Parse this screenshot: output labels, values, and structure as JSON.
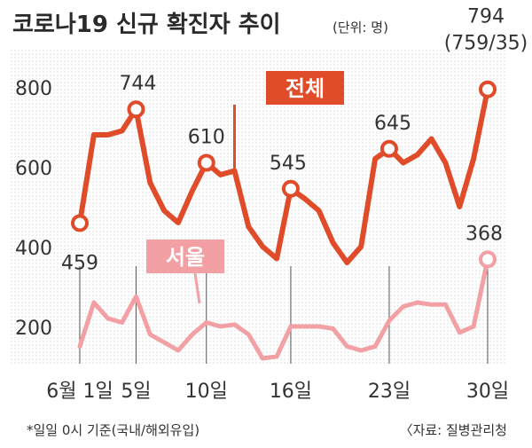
{
  "chart_data": {
    "type": "line",
    "title": "코로나19 신규 확진자 추이",
    "unit_note": "(단위: 명)",
    "footnote": "*일일 0시 기준(국내/해외유입)",
    "source": "〈자료: 질병관리청",
    "x_tick_labels": [
      {
        "x": 1,
        "label": "6월 1일"
      },
      {
        "x": 5,
        "label": "5일"
      },
      {
        "x": 10,
        "label": "10일"
      },
      {
        "x": 16,
        "label": "16일"
      },
      {
        "x": 23,
        "label": "23일"
      },
      {
        "x": 30,
        "label": "30일"
      }
    ],
    "xlim": [
      -1,
      31
    ],
    "yticks": [
      200,
      400,
      600,
      800
    ],
    "ylim": [
      0,
      880
    ],
    "grid": "dotted background",
    "series": [
      {
        "name": "전체",
        "color": "#e04b2a",
        "x": [
          1,
          2,
          3,
          4,
          5,
          6,
          7,
          8,
          9,
          10,
          11,
          12,
          13,
          14,
          15,
          16,
          17,
          18,
          19,
          20,
          21,
          22,
          23,
          24,
          25,
          26,
          27,
          28,
          29,
          30
        ],
        "values": [
          459,
          680,
          680,
          690,
          744,
          560,
          490,
          460,
          540,
          610,
          580,
          590,
          450,
          400,
          370,
          545,
          520,
          490,
          410,
          360,
          400,
          620,
          645,
          610,
          630,
          670,
          610,
          500,
          620,
          794
        ],
        "annotations": [
          {
            "x": 1,
            "y": 459,
            "label": "459"
          },
          {
            "x": 5,
            "y": 744,
            "label": "744"
          },
          {
            "x": 10,
            "y": 610,
            "label": "610"
          },
          {
            "x": 16,
            "y": 545,
            "label": "545"
          },
          {
            "x": 23,
            "y": 645,
            "label": "645"
          },
          {
            "x": 30,
            "y": 794,
            "label_lines": [
              "794",
              "(759/35)"
            ]
          }
        ]
      },
      {
        "name": "서울",
        "color": "#f2a0a3",
        "x": [
          1,
          2,
          3,
          4,
          5,
          6,
          7,
          8,
          9,
          10,
          11,
          12,
          13,
          14,
          15,
          16,
          17,
          18,
          19,
          20,
          21,
          22,
          23,
          24,
          25,
          26,
          27,
          28,
          29,
          30
        ],
        "values": [
          150,
          260,
          220,
          210,
          275,
          180,
          160,
          140,
          180,
          210,
          200,
          205,
          180,
          120,
          125,
          200,
          200,
          200,
          195,
          150,
          140,
          150,
          215,
          250,
          260,
          255,
          255,
          185,
          200,
          368
        ],
        "annotations": [
          {
            "x": 30,
            "y": 368,
            "label": "368"
          }
        ]
      }
    ]
  }
}
